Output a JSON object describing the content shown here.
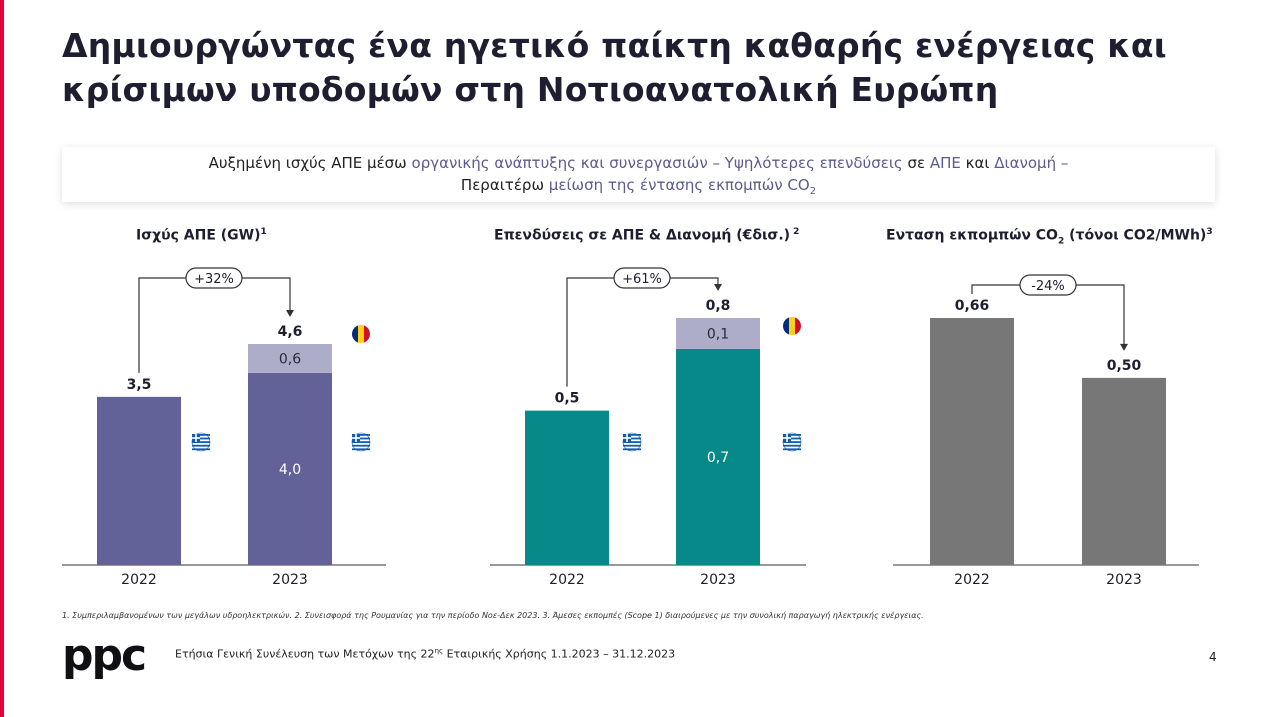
{
  "title": "Δημιουργώντας ένα ηγετικό παίκτη καθαρής ενέργειας και κρίσιμων υποδομών στη Νοτιοανατολική Ευρώπη",
  "subtitle": {
    "p1": "Αυξημένη ισχύς ΑΠΕ  μέσω ",
    "p2": "οργανικής ανάπτυξης και συνεργασιών – Υψηλότερες επενδύσεις",
    "p3": " σε ",
    "p4": "ΑΠΕ",
    "p5": " και ",
    "p6": "Διανομή –",
    "p7": "Περαιτέρω ",
    "p8": "μείωση της έντασης εκπομπών CO",
    "p9": "2"
  },
  "panels": [
    {
      "title": "Ισχύς ΑΠΕ (GW)",
      "sup": "1"
    },
    {
      "title": "Επενδύσεις σε ΑΠΕ & Διανομή (€δισ.)",
      "sup": " 2"
    },
    {
      "title_a": "Ενταση εκπομπών CO",
      "title_sub": "2",
      "title_b": " (τόνοι CO2/MWh)",
      "sup": "3"
    }
  ],
  "chart_data": [
    {
      "type": "bar",
      "title": "Ισχύς ΑΠΕ (GW)",
      "categories": [
        "2022",
        "2023"
      ],
      "series": [
        {
          "name": "Ελλάδα",
          "values": [
            3.5,
            4.0
          ]
        },
        {
          "name": "Ρουμανία",
          "values": [
            0,
            0.6
          ]
        }
      ],
      "totals": [
        "3,5",
        "4,6"
      ],
      "segment_labels": {
        "2023": [
          "4,0",
          "0,6"
        ]
      },
      "change": "+32%",
      "colors": [
        "#626298",
        "#aeadc9"
      ],
      "flags": [
        "greece",
        "romania"
      ]
    },
    {
      "type": "bar",
      "title": "Επενδύσεις σε ΑΠΕ & Διανομή (€δισ.)",
      "categories": [
        "2022",
        "2023"
      ],
      "series": [
        {
          "name": "Ελλάδα",
          "values": [
            0.5,
            0.7
          ]
        },
        {
          "name": "Ρουμανία",
          "values": [
            0,
            0.1
          ]
        }
      ],
      "totals": [
        "0,5",
        "0,8"
      ],
      "segment_labels": {
        "2023": [
          "0,7",
          "0,1"
        ]
      },
      "change": "+61%",
      "colors": [
        "#07898a",
        "#aeadc9"
      ],
      "flags": [
        "greece",
        "romania"
      ]
    },
    {
      "type": "bar",
      "title": "Ενταση εκπομπών CO2 (τόνοι CO2/MWh)",
      "categories": [
        "2022",
        "2023"
      ],
      "values": [
        0.66,
        0.5
      ],
      "totals": [
        "0,66",
        "0,50"
      ],
      "change": "-24%",
      "colors": [
        "#777777"
      ]
    }
  ],
  "footnote": "1. Συμπεριλαμβανομένων των μεγάλων υδροηλεκτρικών. 2. Συνεισφορά της Ρουμανίας για την περίοδο Νοε-Δεκ 2023. 3. Άμεσες εκπομπές (Scope 1) διαιρούμενες με την συνολική παραγωγή ηλεκτρικής ενέργειας.",
  "logo": "ppc",
  "footer": {
    "a": "Ετήσια Γενική Συνέλευση των Μετόχων της 22",
    "sup": "ης",
    "b": " Εταιρικής Χρήσης 1.1.2023 – 31.12.2023"
  },
  "page_number": "4",
  "colors": {
    "accent": "#e4003a",
    "purple": "#626298",
    "lavender": "#aeadc9",
    "teal": "#07898a",
    "grey": "#777777",
    "subtitle_highlight": "#5b5b8f"
  }
}
